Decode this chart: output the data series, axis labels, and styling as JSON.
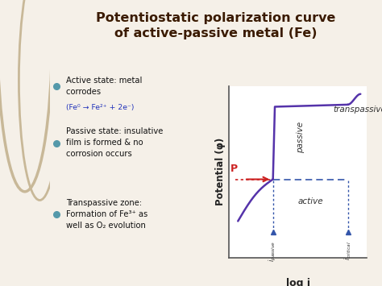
{
  "title_line1": "Potentiostatic polarization curve",
  "title_line2": "of active-passive metal (Fe)",
  "title_color": "#3a1a00",
  "title_fontsize": 11.5,
  "bg_color": "#f5f0e8",
  "right_bg_color": "#ffffff",
  "curve_color": "#5533aa",
  "curve_linewidth": 1.8,
  "ylabel": "Potential (φ)",
  "xlabel": "log i",
  "bullet_color": "#5599aa",
  "text_color": "#111111",
  "formula_color": "#2233bb",
  "dashed_color": "#3355aa",
  "dotted_color": "#cc2222",
  "arrow_color": "#cc2222",
  "P_color": "#cc2222",
  "label_color": "#333333",
  "circle_color": "#c8b898",
  "spine_color": "#555555"
}
